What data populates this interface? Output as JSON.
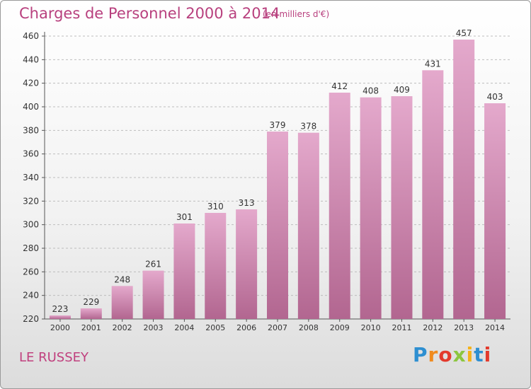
{
  "header": {
    "title": "Charges de Personnel 2000 à 2014",
    "subtitle": "(en milliers d'€)"
  },
  "footer": {
    "location": "LE RUSSEY",
    "logo": [
      "P",
      "r",
      "o",
      "x",
      "i",
      "t",
      "i"
    ]
  },
  "colors": {
    "title": "#b8407e",
    "bar_top": "#e4a9cc",
    "bar_bottom": "#b26690",
    "logo": [
      "#2e8fd1",
      "#f08a1e",
      "#e33a2c",
      "#8cc63f",
      "#f5b21b",
      "#2e8fd1",
      "#e33a2c"
    ]
  },
  "chart_data": {
    "type": "bar",
    "categories": [
      "2000",
      "2001",
      "2002",
      "2003",
      "2004",
      "2005",
      "2006",
      "2007",
      "2008",
      "2009",
      "2010",
      "2011",
      "2012",
      "2013",
      "2014"
    ],
    "values": [
      223,
      229,
      248,
      261,
      301,
      310,
      313,
      379,
      378,
      412,
      408,
      409,
      431,
      457,
      403
    ],
    "ylim": [
      220,
      460
    ],
    "yticks": [
      220,
      240,
      260,
      280,
      300,
      320,
      340,
      360,
      380,
      400,
      420,
      440,
      460
    ],
    "grid": true,
    "data_labels": true
  }
}
